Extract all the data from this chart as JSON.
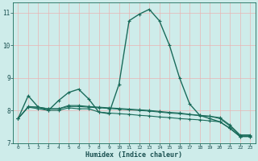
{
  "xlabel": "Humidex (Indice chaleur)",
  "xlim": [
    -0.5,
    23.5
  ],
  "ylim": [
    7,
    11.3
  ],
  "yticks": [
    7,
    8,
    9,
    10,
    11
  ],
  "xticks": [
    0,
    1,
    2,
    3,
    4,
    5,
    6,
    7,
    8,
    9,
    10,
    11,
    12,
    13,
    14,
    15,
    16,
    17,
    18,
    19,
    20,
    21,
    22,
    23
  ],
  "bg_color": "#ceecea",
  "grid_color": "#e8b4b4",
  "line_color": "#1a6b5a",
  "lines": [
    [
      7.75,
      8.45,
      8.1,
      8.0,
      8.3,
      8.55,
      8.65,
      8.35,
      7.95,
      7.9,
      8.8,
      10.75,
      10.95,
      11.1,
      10.75,
      10.0,
      9.0,
      8.2,
      7.85,
      7.75,
      7.65,
      7.45,
      7.2,
      7.2
    ],
    [
      7.75,
      8.1,
      8.05,
      8.0,
      8.0,
      8.08,
      8.05,
      8.05,
      7.95,
      7.92,
      7.9,
      7.88,
      7.85,
      7.83,
      7.8,
      7.78,
      7.75,
      7.73,
      7.71,
      7.68,
      7.65,
      7.45,
      7.2,
      7.2
    ],
    [
      7.75,
      8.1,
      8.1,
      8.05,
      8.05,
      8.12,
      8.12,
      8.1,
      8.08,
      8.06,
      8.04,
      8.02,
      8.0,
      7.98,
      7.95,
      7.92,
      7.9,
      7.87,
      7.84,
      7.82,
      7.75,
      7.52,
      7.22,
      7.22
    ],
    [
      7.75,
      8.12,
      8.1,
      8.05,
      8.05,
      8.15,
      8.15,
      8.12,
      8.1,
      8.08,
      8.06,
      8.04,
      8.02,
      8.0,
      7.97,
      7.94,
      7.92,
      7.88,
      7.85,
      7.82,
      7.78,
      7.55,
      7.25,
      7.25
    ]
  ]
}
